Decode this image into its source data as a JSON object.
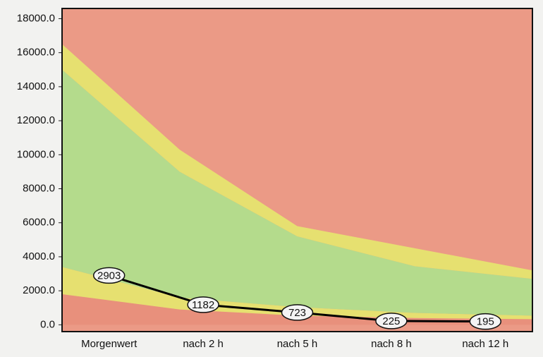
{
  "chart_data": {
    "type": "line",
    "categories": [
      "Morgenwert",
      "nach  2 h",
      "nach  5 h",
      "nach  8 h",
      "nach 12 h"
    ],
    "series": [
      {
        "color": "#000000",
        "values": [
          2903,
          1182,
          723,
          225,
          195
        ]
      }
    ],
    "bands": [
      {
        "color": "#e8907c",
        "values": [
          1800,
          900,
          540,
          400,
          330
        ]
      },
      {
        "color": "#e6e070",
        "values": [
          1600,
          700,
          500,
          300,
          210
        ]
      },
      {
        "color": "#b4db8c",
        "values": [
          11600,
          7400,
          4160,
          2740,
          2160
        ]
      },
      {
        "color": "#e6e070",
        "values": [
          1500,
          1300,
          600,
          1060,
          500
        ]
      }
    ],
    "plot_color": "#eb9a86",
    "ylim": [
      -400,
      18600
    ],
    "yticks": [
      {
        "value": 0,
        "label": "0.0"
      },
      {
        "value": 2000,
        "label": "2000.0"
      },
      {
        "value": 4000,
        "label": "4000.0"
      },
      {
        "value": 6000,
        "label": "6000.0"
      },
      {
        "value": 8000,
        "label": "8000.0"
      },
      {
        "value": 10000,
        "label": "10000.0"
      },
      {
        "value": 12000,
        "label": "12000.0"
      },
      {
        "value": 14000,
        "label": "14000.0"
      },
      {
        "value": 16000,
        "label": "16000.0"
      },
      {
        "value": 18000,
        "label": "18000.0"
      }
    ]
  }
}
